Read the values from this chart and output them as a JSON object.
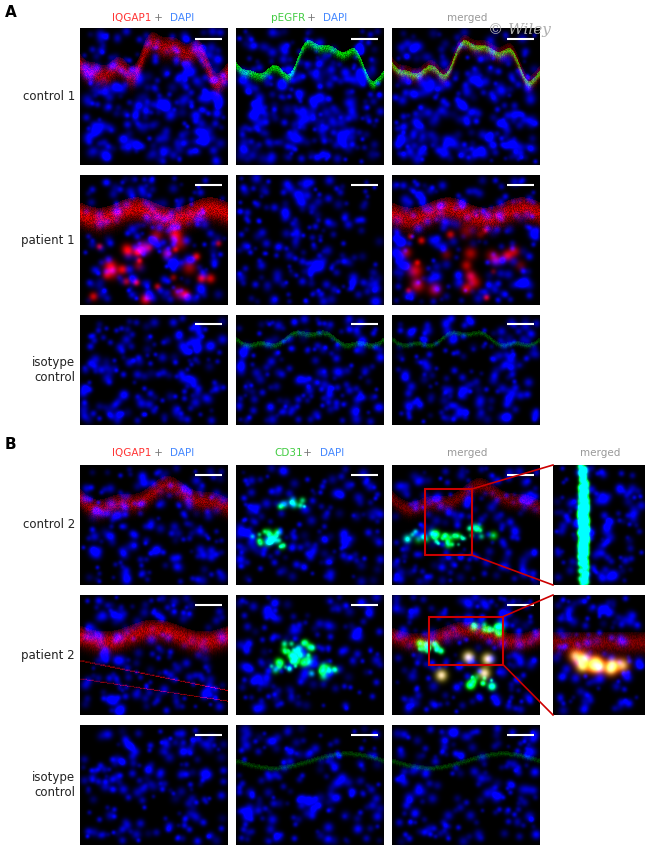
{
  "fig_width": 6.5,
  "fig_height": 8.58,
  "background_color": "#ffffff",
  "wiley_text": "© Wiley",
  "wiley_color": "#b0b0b0",
  "wiley_fontsize": 11,
  "label_fontsize": 8.5,
  "header_fontsize": 7.5,
  "panel_label_fontsize": 11,
  "row_label_color": "#222222",
  "header_A": [
    [
      [
        "IQGAP1",
        "#ff3333"
      ],
      [
        " + ",
        "#777777"
      ],
      [
        "DAPI",
        "#4488ff"
      ]
    ],
    [
      [
        "pEGFR",
        "#44cc44"
      ],
      [
        " + ",
        "#777777"
      ],
      [
        "DAPI",
        "#4488ff"
      ]
    ],
    [
      [
        "merged",
        "#999999"
      ]
    ]
  ],
  "header_B": [
    [
      [
        "IQGAP1",
        "#ff3333"
      ],
      [
        " + ",
        "#777777"
      ],
      [
        "DAPI",
        "#4488ff"
      ]
    ],
    [
      [
        "CD31",
        "#44cc44"
      ],
      [
        " + ",
        "#777777"
      ],
      [
        "DAPI",
        "#4488ff"
      ]
    ],
    [
      [
        "merged",
        "#999999"
      ]
    ],
    [
      [
        "merged",
        "#999999"
      ]
    ]
  ],
  "row_labels_A": [
    "control 1",
    "patient 1",
    "isotype\ncontrol"
  ],
  "row_labels_B": [
    "control 2",
    "patient 2",
    "isotype\ncontrol"
  ]
}
